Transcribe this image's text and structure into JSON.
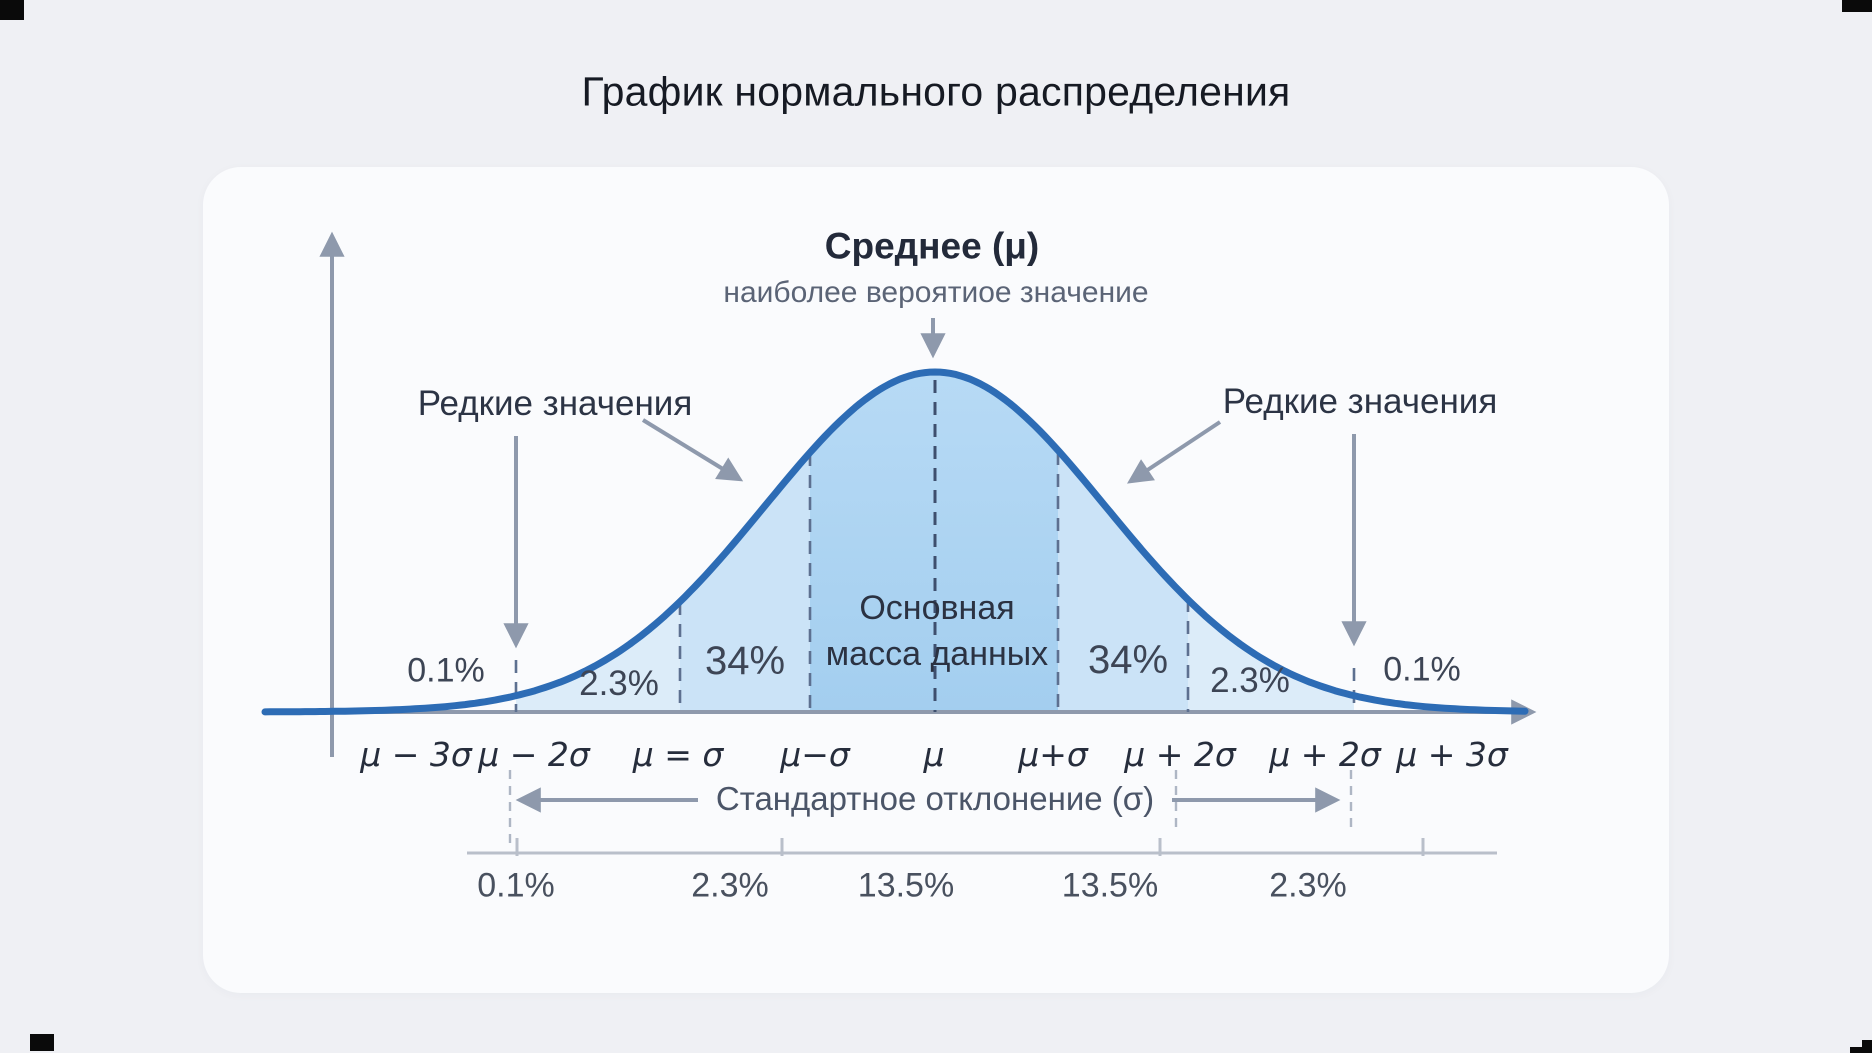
{
  "title": "График нормального распределения",
  "chart": {
    "mean_label": "Среднее (μ)",
    "mean_sublabel": "наиболее вероятиое значение",
    "rare_left": "Редкие значения",
    "rare_right": "Редкие значения",
    "main_mass_line1": "Основная",
    "main_mass_line2": "масса данных",
    "pct_left_01": "0.1%",
    "pct_left_23": "2.3%",
    "pct_left_34": "34%",
    "pct_right_34": "34%",
    "pct_right_23": "2.3%",
    "pct_right_01": "0.1%",
    "axis_labels": [
      "μ − 3σ",
      "μ − 2σ",
      "μ = σ",
      "μ−σ",
      "μ",
      "μ+σ",
      "μ + 2σ",
      "μ + 2σ",
      "μ + 3σ"
    ],
    "std_dev_label": "Стандартное отклонение (σ)",
    "bottom_percents": [
      "0.1%",
      "2.3%",
      "13.5%",
      "13.5%",
      "2.3%"
    ]
  },
  "colors": {
    "page_bg": "#eff0f4",
    "card_bg": "#fafbfd",
    "curve": "#2d6cb5",
    "fill_core": "#a3ceef",
    "fill_core_top": "#b7daf5",
    "fill_mid": "#cbe3f7",
    "fill_outer": "#dcecf9",
    "arrow": "#8e99ac",
    "dashed": "#5d7090",
    "dashed_center": "#3e4f6e",
    "scale_line": "#b9bfca",
    "title_text": "#161a23",
    "dark_text": "#232a3a",
    "gray_text": "#5b6476",
    "pct_text": "#3d4555",
    "axis_text": "#262d3c",
    "mark": "#0a0a0a"
  },
  "chart_data": {
    "type": "area",
    "distribution": "normal",
    "title": "График нормального распределения",
    "x_tick_labels": [
      "μ − 3σ",
      "μ − 2σ",
      "μ = σ",
      "μ−σ",
      "μ",
      "μ+σ",
      "μ + 2σ",
      "μ + 2σ",
      "μ + 3σ"
    ],
    "segments": [
      {
        "from": "μ−3σ",
        "to": "μ−2σ",
        "percent": "0.1%"
      },
      {
        "from": "μ−2σ",
        "to": "μ−σ",
        "percent": "2.3%"
      },
      {
        "from": "μ−σ",
        "to": "μ",
        "percent": "34%"
      },
      {
        "from": "μ",
        "to": "μ+σ",
        "percent": "34%"
      },
      {
        "from": "μ+σ",
        "to": "μ+2σ",
        "percent": "2.3%"
      },
      {
        "from": "μ+2σ",
        "to": "μ+3σ",
        "percent": "0.1%"
      }
    ],
    "bottom_scale_percents": [
      "0.1%",
      "2.3%",
      "13.5%",
      "13.5%",
      "2.3%"
    ],
    "annotations": [
      "Среднее (μ)",
      "наиболее вероятиое значение",
      "Редкие значения",
      "Основная масса данных",
      "Стандартное отклонение (σ)"
    ],
    "legend": "none",
    "grid": "off"
  }
}
